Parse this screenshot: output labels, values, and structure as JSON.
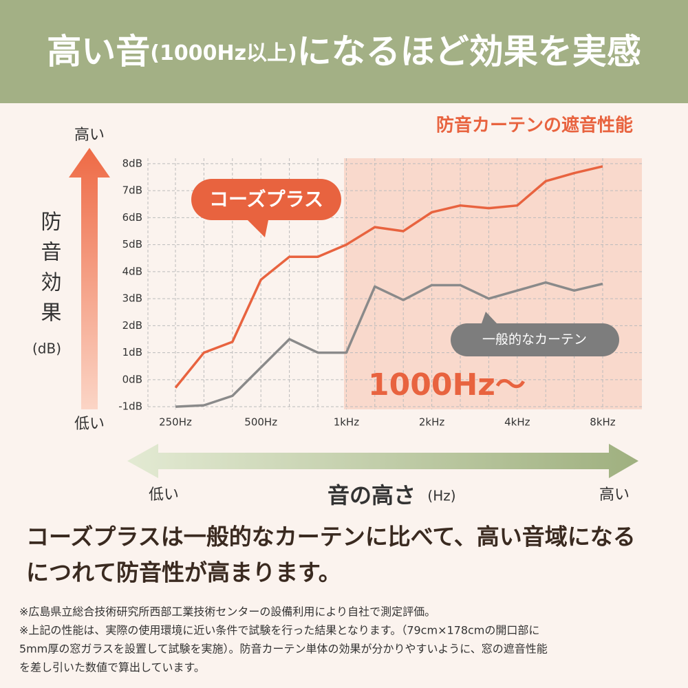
{
  "header": {
    "title_parts": [
      "高い音",
      "(1000Hz以上)",
      "になるほど効果を実感"
    ]
  },
  "chart_data": {
    "type": "line",
    "title": "防音カーテンの遮音性能",
    "y_label": "防音効果",
    "y_unit": "(dB)",
    "y_high": "高い",
    "y_low": "低い",
    "x_label": "音の高さ",
    "x_unit": "(Hz)",
    "x_low": "低い",
    "x_high": "高い",
    "annotation": "1000Hz〜",
    "categories": [
      "250Hz",
      null,
      null,
      "500Hz",
      null,
      null,
      "1kHz",
      null,
      null,
      "2kHz",
      null,
      null,
      "4kHz",
      null,
      null,
      "8kHz"
    ],
    "series": [
      {
        "name": "コーズプラス",
        "color": "#e8633f",
        "values": [
          -0.3,
          1.0,
          1.4,
          3.7,
          4.55,
          4.55,
          5.0,
          5.65,
          5.5,
          6.2,
          6.45,
          6.35,
          6.45,
          7.35,
          7.65,
          7.9
        ]
      },
      {
        "name": "一般的なカーテン",
        "color": "#8a8a8a",
        "values": [
          -1.0,
          -0.95,
          -0.6,
          0.45,
          1.5,
          1.0,
          1.0,
          3.45,
          2.95,
          3.5,
          3.5,
          3.0,
          3.3,
          3.6,
          3.3,
          3.55
        ]
      }
    ],
    "ylim": [
      -1.1,
      8.2
    ],
    "yticks": [
      {
        "value": -1,
        "label": "-1dB"
      },
      {
        "value": 0,
        "label": "0dB"
      },
      {
        "value": 1,
        "label": "1dB"
      },
      {
        "value": 2,
        "label": "2dB"
      },
      {
        "value": 3,
        "label": "3dB"
      },
      {
        "value": 4,
        "label": "4dB"
      },
      {
        "value": 5,
        "label": "5dB"
      },
      {
        "value": 6,
        "label": "6dB"
      },
      {
        "value": 7,
        "label": "7dB"
      },
      {
        "value": 8,
        "label": "8dB"
      }
    ],
    "grid": true
  },
  "body": {
    "lines": [
      "コーズプラスは一般的なカーテンに比べて、高い音域になる",
      "につれて防音性が高まります。"
    ]
  },
  "notes": [
    "※広島県立総合技術研究所西部工業技術センターの設備利用により自社で測定評価。",
    "※上記の性能は、実際の使用環境に近い条件で試験を行った結果となります。（79cm×178cmの開口部に",
    "5mm厚の窓ガラスを設置して試験を実施）。防音カーテン単体の効果が分かりやすいように、窓の遮音性能",
    "を差し引いた数値で算出しています。"
  ]
}
